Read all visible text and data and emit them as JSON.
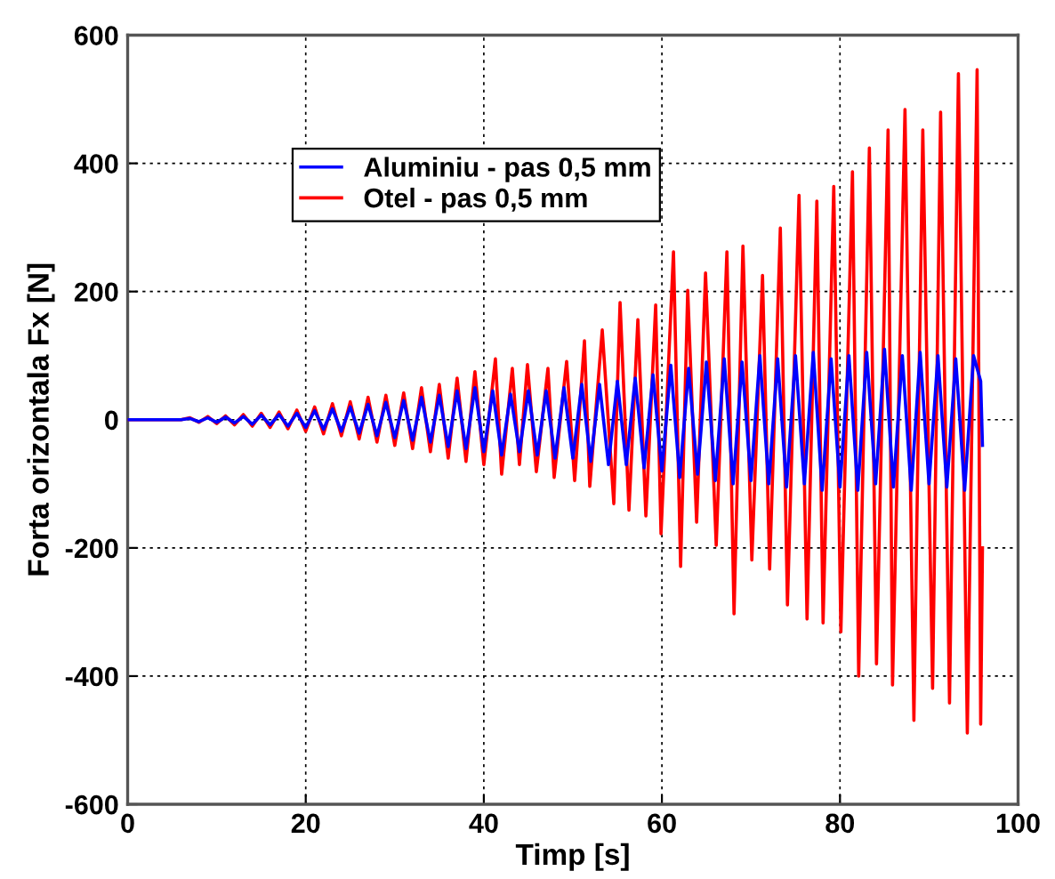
{
  "chart_data": {
    "type": "line",
    "xlabel": "Timp [s]",
    "ylabel": "Forta orizontala Fx [N]",
    "xlim": [
      0,
      100
    ],
    "xticks": [
      0,
      20,
      40,
      60,
      80,
      100
    ],
    "ylim": [
      -600,
      600
    ],
    "yticks": [
      -600,
      -400,
      -200,
      0,
      200,
      400,
      600
    ],
    "grid": true,
    "legend": "top left",
    "line_style": "solid",
    "marker": "none",
    "series": [
      {
        "name": "Aluminiu - pas 0,5 mm",
        "color": "#0000ff",
        "x": [
          0,
          6,
          7,
          8,
          9,
          10,
          11,
          12,
          13,
          14,
          15,
          16,
          17,
          18,
          19,
          20,
          21,
          22,
          23,
          24,
          25,
          26,
          27,
          28,
          29,
          30,
          31,
          32,
          33,
          34,
          35,
          36,
          37,
          38,
          39,
          40,
          41,
          42,
          43,
          44,
          45,
          46,
          47,
          48,
          49,
          50,
          51,
          52,
          53,
          54,
          55,
          56,
          57,
          58,
          59,
          60,
          61,
          62,
          63,
          64,
          65,
          66,
          67,
          68,
          69,
          70,
          71,
          72,
          73,
          74,
          75,
          76,
          77,
          78,
          79,
          80,
          81,
          82,
          83,
          84,
          85,
          86,
          87,
          88,
          89,
          90,
          91,
          92,
          93,
          94,
          95,
          95.8,
          96
        ],
        "values": [
          0,
          0,
          2,
          -3,
          3,
          -4,
          4,
          -5,
          5,
          -7,
          7,
          -8,
          8,
          -10,
          10,
          -12,
          14,
          -15,
          17,
          -18,
          20,
          -21,
          24,
          -25,
          27,
          -28,
          30,
          -32,
          35,
          -35,
          38,
          -42,
          45,
          -45,
          50,
          -50,
          45,
          -55,
          40,
          -50,
          45,
          -55,
          45,
          -60,
          50,
          -60,
          55,
          -65,
          55,
          -70,
          60,
          -70,
          65,
          -75,
          70,
          -80,
          85,
          -90,
          80,
          -85,
          90,
          -95,
          95,
          -100,
          90,
          -95,
          100,
          -100,
          95,
          -105,
          100,
          -100,
          105,
          -110,
          95,
          -105,
          100,
          -110,
          105,
          -100,
          110,
          -105,
          100,
          -110,
          105,
          -100,
          100,
          -105,
          95,
          -110,
          100,
          60,
          -40
        ]
      },
      {
        "name": "Otel - pas 0,5 mm",
        "color": "#ff0000",
        "x": [
          0,
          6,
          7,
          8,
          9,
          10,
          11,
          12,
          13,
          14,
          15,
          16,
          17,
          18,
          19,
          20,
          21,
          22,
          23,
          24,
          25,
          26,
          27,
          28,
          29,
          30,
          31,
          32,
          33,
          34,
          35,
          36,
          37,
          38,
          39,
          40,
          41.3,
          42,
          43.2,
          44,
          44.9,
          45.9,
          47.2,
          47.9,
          49.3,
          50.2,
          51.3,
          51.9,
          53.3,
          54.6,
          55.3,
          56.3,
          57.3,
          58.2,
          59.3,
          59.9,
          61.3,
          62.1,
          62.9,
          63.9,
          64.9,
          66.1,
          67.3,
          68.1,
          69.1,
          70.1,
          71.3,
          72.1,
          73.3,
          74.1,
          75.4,
          76.3,
          77.4,
          78.1,
          79.3,
          80.1,
          81.4,
          82.1,
          83.3,
          84.1,
          85.4,
          85.9,
          87.3,
          88.3,
          89.3,
          90.4,
          91.3,
          92.3,
          93.3,
          94.3,
          95.4,
          95.8,
          96
        ],
        "values": [
          0,
          0,
          3,
          -4,
          5,
          -6,
          6,
          -8,
          8,
          -10,
          10,
          -12,
          12,
          -14,
          15,
          -18,
          20,
          -22,
          25,
          -25,
          28,
          -30,
          35,
          -35,
          38,
          -40,
          42,
          -45,
          50,
          -50,
          55,
          -60,
          65,
          -65,
          75,
          -70,
          95,
          -85,
          80,
          -70,
          86,
          -81,
          80,
          -90,
          91,
          -95,
          123,
          -104,
          140,
          -131,
          183,
          -141,
          156,
          -150,
          179,
          -178,
          262,
          -229,
          202,
          -160,
          229,
          -196,
          262,
          -303,
          271,
          -219,
          225,
          -233,
          299,
          -289,
          350,
          -311,
          341,
          -317,
          364,
          -331,
          387,
          -400,
          424,
          -381,
          452,
          -414,
          484,
          -469,
          452,
          -419,
          480,
          -442,
          540,
          -489,
          546,
          -475,
          -200
        ]
      }
    ]
  }
}
